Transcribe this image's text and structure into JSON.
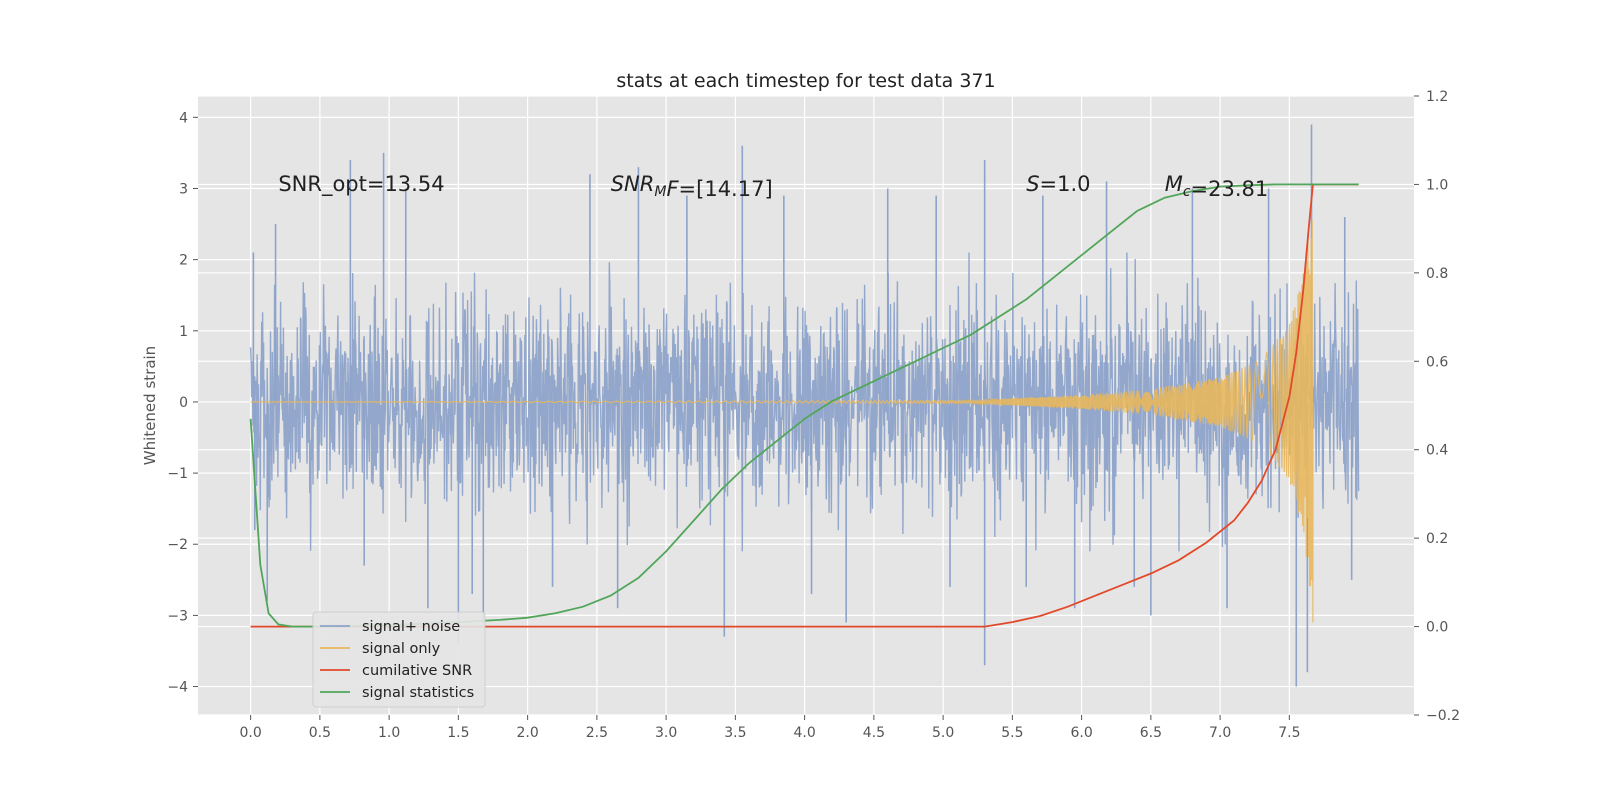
{
  "chart_data": {
    "type": "line",
    "title": "stats at each timestep for test data 371",
    "ylabel": "Whitened strain",
    "xlabel": "",
    "xlim": [
      -0.38,
      8.4
    ],
    "ylim": [
      -4.4,
      4.3
    ],
    "y2lim": [
      -0.2,
      1.2
    ],
    "xticks": [
      0.0,
      0.5,
      1.0,
      1.5,
      2.0,
      2.5,
      3.0,
      3.5,
      4.0,
      4.5,
      5.0,
      5.5,
      6.0,
      6.5,
      7.0,
      7.5
    ],
    "xtick_labels": [
      "0.0",
      "0.5",
      "1.0",
      "1.5",
      "2.0",
      "2.5",
      "3.0",
      "3.5",
      "4.0",
      "4.5",
      "5.0",
      "5.5",
      "6.0",
      "6.5",
      "7.0",
      "7.5"
    ],
    "yticks": [
      4,
      3,
      2,
      1,
      0,
      -1,
      -2,
      -3,
      -4
    ],
    "ytick_labels": [
      "4",
      "3",
      "2",
      "1",
      "0",
      "−1",
      "−2",
      "−3",
      "−4"
    ],
    "y2ticks": [
      1.2,
      1.0,
      0.8,
      0.6,
      0.4,
      0.2,
      0.0,
      -0.2
    ],
    "y2tick_labels": [
      "1.2",
      "1.0",
      "0.8",
      "0.6",
      "0.4",
      "0.2",
      "0.0",
      "−0.2"
    ],
    "grid": true,
    "legend_position": "lower-left",
    "annotations": [
      {
        "text": "SNR_opt=13.54",
        "x": 0.2,
        "y": 3.08
      },
      {
        "text": "SNR_MF=[14.17]",
        "x": 2.6,
        "y": 3.08,
        "math_main": "SNR",
        "math_sub": "M",
        "math_tail": "F",
        "rest": "=[14.17]"
      },
      {
        "text": "S=1.0",
        "x": 5.6,
        "y": 3.08,
        "math_main": "S",
        "math_sub": "",
        "rest": "=1.0"
      },
      {
        "text": "M_c=23.81",
        "x": 6.6,
        "y": 3.08,
        "math_main": "M",
        "math_sub": "c",
        "rest": "=23.81"
      }
    ],
    "series": [
      {
        "name": "signal+ noise",
        "color": "#8da3c9",
        "axis": "left",
        "x_range": [
          0.0,
          8.0
        ],
        "envelope": [
          1.6,
          -1.8
        ],
        "spikes": [
          [
            0.02,
            2.1
          ],
          [
            0.03,
            -1.8
          ],
          [
            0.12,
            -2.8
          ],
          [
            0.18,
            2.5
          ],
          [
            0.72,
            3.4
          ],
          [
            0.82,
            -2.3
          ],
          [
            0.96,
            3.5
          ],
          [
            1.12,
            3.0
          ],
          [
            1.28,
            -2.9
          ],
          [
            1.5,
            -3.4
          ],
          [
            1.6,
            -2.7
          ],
          [
            1.68,
            -3.1
          ],
          [
            2.18,
            -2.6
          ],
          [
            2.45,
            3.2
          ],
          [
            2.65,
            -2.9
          ],
          [
            2.8,
            3.3
          ],
          [
            3.15,
            2.9
          ],
          [
            3.42,
            -3.3
          ],
          [
            3.55,
            3.6
          ],
          [
            3.85,
            2.9
          ],
          [
            4.05,
            -2.7
          ],
          [
            4.3,
            -3.1
          ],
          [
            4.6,
            3.0
          ],
          [
            4.95,
            2.9
          ],
          [
            5.05,
            -2.6
          ],
          [
            5.3,
            3.4
          ],
          [
            5.3,
            -3.7
          ],
          [
            5.6,
            -2.6
          ],
          [
            5.72,
            2.9
          ],
          [
            5.95,
            -2.9
          ],
          [
            6.18,
            3.1
          ],
          [
            6.38,
            -2.6
          ],
          [
            6.5,
            -3.0
          ],
          [
            6.8,
            3.0
          ],
          [
            7.05,
            -2.9
          ],
          [
            7.35,
            3.0
          ],
          [
            7.55,
            -4.0
          ],
          [
            7.63,
            -3.8
          ],
          [
            7.66,
            3.9
          ],
          [
            7.9,
            2.6
          ],
          [
            7.95,
            -2.5
          ]
        ]
      },
      {
        "name": "signal only",
        "color": "#e8b75d",
        "axis": "left",
        "x_range": [
          0.0,
          7.67
        ],
        "amplitude": [
          [
            0.0,
            0.0
          ],
          [
            5.2,
            0.02
          ],
          [
            6.0,
            0.1
          ],
          [
            6.5,
            0.18
          ],
          [
            7.0,
            0.35
          ],
          [
            7.3,
            0.6
          ],
          [
            7.5,
            1.1
          ],
          [
            7.6,
            1.8
          ],
          [
            7.67,
            3.0
          ]
        ],
        "end_value": [
          7.67,
          -3.1
        ]
      },
      {
        "name": "cumilative SNR",
        "color": "#e2492a",
        "axis": "right",
        "x": [
          0.0,
          5.3,
          5.5,
          5.7,
          5.9,
          6.1,
          6.3,
          6.5,
          6.7,
          6.9,
          7.1,
          7.2,
          7.3,
          7.4,
          7.5,
          7.55,
          7.6,
          7.64,
          7.67,
          7.7,
          8.0
        ],
        "values": [
          0.0,
          0.0,
          0.01,
          0.024,
          0.045,
          0.07,
          0.095,
          0.12,
          0.15,
          0.19,
          0.24,
          0.28,
          0.33,
          0.4,
          0.52,
          0.62,
          0.76,
          0.9,
          1.0,
          1.0,
          1.0
        ]
      },
      {
        "name": "signal statistics",
        "color": "#51a65a",
        "axis": "right",
        "x": [
          0.0,
          0.07,
          0.13,
          0.2,
          0.3,
          0.5,
          1.0,
          1.5,
          1.8,
          2.0,
          2.2,
          2.4,
          2.6,
          2.8,
          3.0,
          3.2,
          3.4,
          3.6,
          3.8,
          4.0,
          4.2,
          4.4,
          4.6,
          4.8,
          5.0,
          5.2,
          5.4,
          5.6,
          5.8,
          6.0,
          6.2,
          6.4,
          6.6,
          6.8,
          7.0,
          7.2,
          7.4,
          7.67,
          8.0
        ],
        "values": [
          0.47,
          0.14,
          0.03,
          0.005,
          0.0,
          0.0,
          0.003,
          0.01,
          0.015,
          0.02,
          0.03,
          0.045,
          0.07,
          0.11,
          0.17,
          0.24,
          0.31,
          0.37,
          0.42,
          0.47,
          0.51,
          0.54,
          0.57,
          0.6,
          0.63,
          0.66,
          0.7,
          0.74,
          0.79,
          0.84,
          0.89,
          0.94,
          0.97,
          0.985,
          0.995,
          0.998,
          1.0,
          1.0,
          1.0
        ]
      }
    ]
  }
}
